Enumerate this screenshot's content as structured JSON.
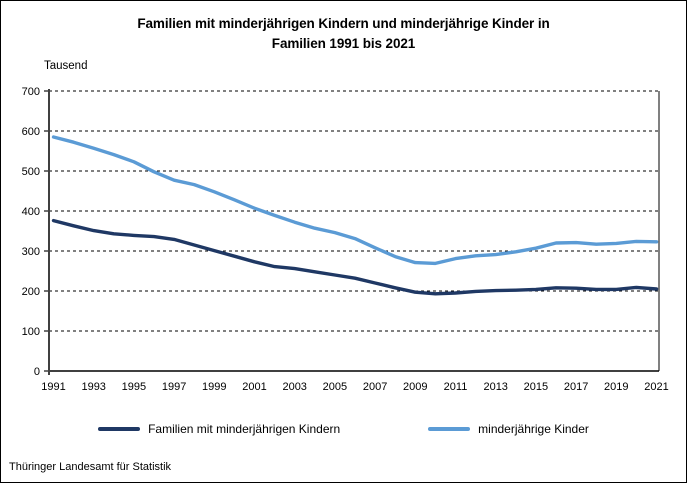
{
  "page": {
    "title_line1": "Familien mit minderjährigen Kindern und minderjährige Kinder in",
    "title_line2": "Familien 1991 bis 2021",
    "unit_label": "Tausend",
    "source": "Thüringer Landesamt für Statistik"
  },
  "chart_data": {
    "type": "line",
    "title": "Familien mit minderjährigen Kindern und minderjährige Kinder in Familien 1991 bis 2021",
    "ylabel": "Tausend",
    "xlabel": "",
    "ylim": [
      0,
      700
    ],
    "ytick_step": 100,
    "grid": "horizontal-dashed",
    "legend_position": "bottom",
    "x_tick_labels": [
      "1991",
      "1993",
      "1995",
      "1997",
      "1999",
      "2001",
      "2003",
      "2005",
      "2007",
      "2009",
      "2011",
      "2013",
      "2015",
      "2017",
      "2019",
      "2021"
    ],
    "years": [
      1991,
      1992,
      1993,
      1994,
      1995,
      1996,
      1997,
      1998,
      1999,
      2000,
      2001,
      2002,
      2003,
      2004,
      2005,
      2006,
      2007,
      2008,
      2009,
      2010,
      2011,
      2012,
      2013,
      2014,
      2015,
      2016,
      2017,
      2018,
      2019,
      2020,
      2021
    ],
    "series": [
      {
        "name": "Familien mit minderjährigen Kindern",
        "color": "#1F3864",
        "values": [
          376,
          363,
          351,
          343,
          339,
          336,
          329,
          315,
          301,
          287,
          273,
          261,
          256,
          248,
          240,
          232,
          220,
          208,
          197,
          193,
          195,
          199,
          201,
          202,
          204,
          208,
          207,
          204,
          204,
          209,
          205
        ]
      },
      {
        "name": "minderjährige Kinder",
        "color": "#5B9BD5",
        "values": [
          585,
          572,
          557,
          541,
          523,
          498,
          477,
          466,
          448,
          428,
          407,
          389,
          372,
          357,
          346,
          331,
          308,
          286,
          271,
          269,
          281,
          288,
          291,
          298,
          307,
          320,
          321,
          317,
          319,
          324,
          323
        ]
      }
    ]
  }
}
